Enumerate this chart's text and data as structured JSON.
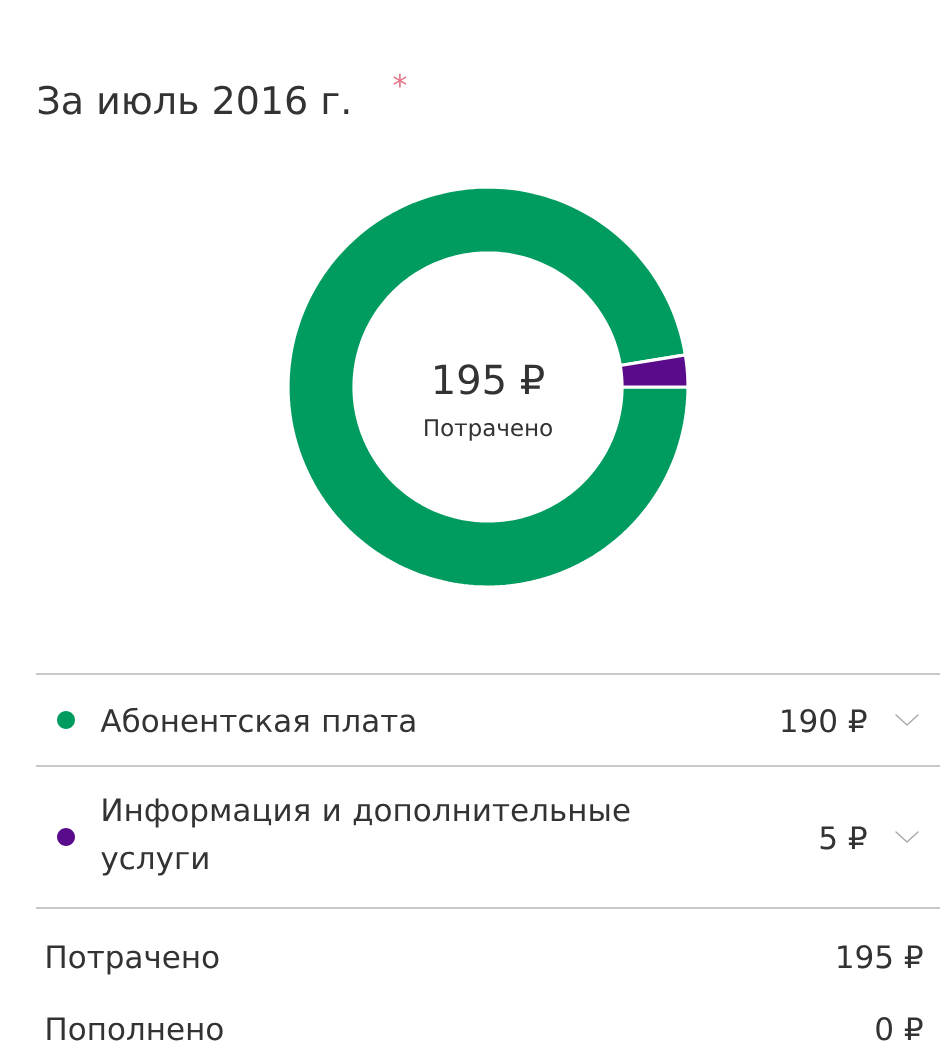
{
  "chart_data": {
    "type": "donut",
    "title": "За июль 2016 г.",
    "categories": [
      "Абонентская плата",
      "Информация и дополнительные услуги"
    ],
    "values": [
      190,
      5
    ],
    "colors": [
      "#009b5f",
      "#5a0b8c"
    ],
    "value_labels": [
      "190 ₽",
      "5 ₽"
    ],
    "legend": "bottom",
    "annotations": [
      "*",
      "195 ₽",
      "Потрачено",
      "Потрачено",
      "195 ₽",
      "Пополнено",
      "0 ₽"
    ]
  }
}
